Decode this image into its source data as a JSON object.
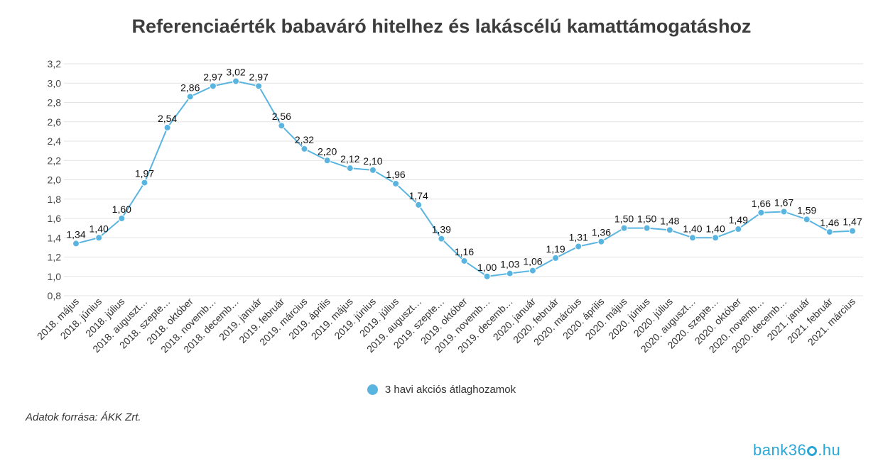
{
  "chart_data": {
    "type": "line",
    "title": "Referenciaérték babaváró hitelhez és lakáscélú kamattámogatáshoz",
    "categories": [
      "2018. május",
      "2018. június",
      "2018. július",
      "2018. auguszt…",
      "2018. szepte…",
      "2018. október",
      "2018. novemb…",
      "2018. decemb…",
      "2019. január",
      "2019. február",
      "2019. március",
      "2019. április",
      "2019. május",
      "2019. június",
      "2019. július",
      "2019. auguszt…",
      "2019. szepte…",
      "2019. október",
      "2019. novemb…",
      "2019. decemb…",
      "2020. január",
      "2020. február",
      "2020. március",
      "2020. április",
      "2020. május",
      "2020. június",
      "2020. július",
      "2020. auguszt…",
      "2020. szepte…",
      "2020. október",
      "2020. novemb…",
      "2020. decemb…",
      "2021. január",
      "2021. február",
      "2021. március"
    ],
    "series": [
      {
        "name": "3 havi akciós átlaghozamok",
        "values": [
          1.34,
          1.4,
          1.6,
          1.97,
          2.54,
          2.86,
          2.97,
          3.02,
          2.97,
          2.56,
          2.32,
          2.2,
          2.12,
          2.1,
          1.96,
          1.74,
          1.39,
          1.16,
          1.0,
          1.03,
          1.06,
          1.19,
          1.31,
          1.36,
          1.5,
          1.5,
          1.48,
          1.4,
          1.4,
          1.49,
          1.66,
          1.67,
          1.59,
          1.46,
          1.47
        ],
        "labels": [
          "1,34",
          "1,40",
          "1,60",
          "1,97",
          "2,54",
          "2,86",
          "2,97",
          "3,02",
          "2,97",
          "2,56",
          "2,32",
          "2,20",
          "2,12",
          "2,10",
          "1,96",
          "1,74",
          "1,39",
          "1,16",
          "1,00",
          "1,03",
          "1,06",
          "1,19",
          "1,31",
          "1,36",
          "1,50",
          "1,50",
          "1,48",
          "1,40",
          "1,40",
          "1,49",
          "1,66",
          "1,67",
          "1,59",
          "1,46",
          "1,47"
        ]
      }
    ],
    "ylim": [
      0.8,
      3.2
    ],
    "yticks": [
      0.8,
      1.0,
      1.2,
      1.4,
      1.6,
      1.8,
      2.0,
      2.2,
      2.4,
      2.6,
      2.8,
      3.0,
      3.2
    ],
    "ytick_labels": [
      "0,8",
      "1,0",
      "1,2",
      "1,4",
      "1,6",
      "1,8",
      "2,0",
      "2,2",
      "2,4",
      "2,6",
      "2,8",
      "3,0",
      "3,2"
    ],
    "grid": true,
    "legend_position": "bottom",
    "color": "#5ab4e0"
  },
  "footer": {
    "source": "Adatok forrása: ÁKK Zrt.",
    "logo_pre": "bank36",
    "logo_post": ".hu"
  }
}
